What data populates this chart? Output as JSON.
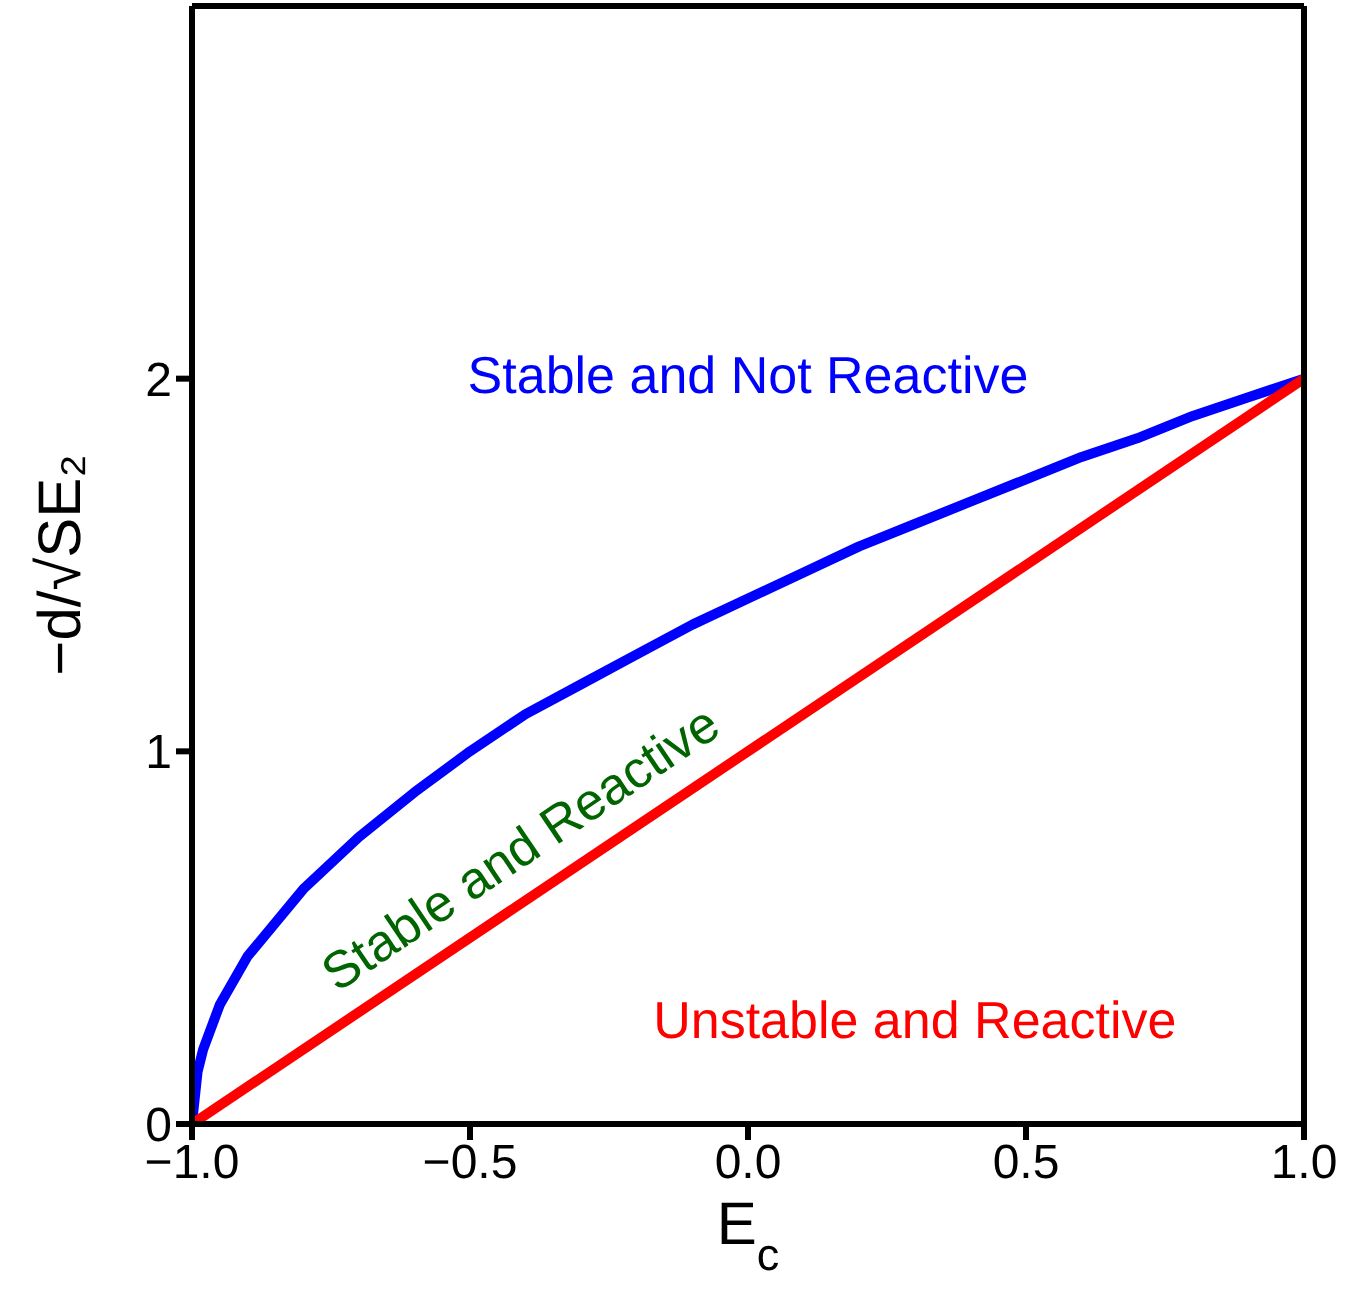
{
  "chart_data": {
    "type": "line",
    "xlabel": "E$_{c}$",
    "ylabel": "−d/√SE₂",
    "xlim": [
      -1,
      1
    ],
    "ylim": [
      0,
      3
    ],
    "xticks": [
      {
        "value": -1,
        "label": "−1.0"
      },
      {
        "value": -0.5,
        "label": "−0.5"
      },
      {
        "value": 0,
        "label": "0.0"
      },
      {
        "value": 0.5,
        "label": "0.5"
      },
      {
        "value": 1,
        "label": "1.0"
      }
    ],
    "yticks": [
      0,
      1,
      2
    ],
    "marker": "none",
    "line_style": "solid",
    "series": [
      {
        "color": "#0000ff",
        "x": [
          -1,
          -0.99,
          -0.98,
          -0.95,
          -0.9,
          -0.8,
          -0.7,
          -0.6,
          -0.5,
          -0.4,
          -0.3,
          -0.2,
          -0.1,
          0,
          0.1,
          0.2,
          0.3,
          0.4,
          0.5,
          0.6,
          0.7,
          0.8,
          0.9,
          1
        ],
        "values": [
          0,
          0.14,
          0.2,
          0.32,
          0.45,
          0.63,
          0.77,
          0.89,
          1.0,
          1.1,
          1.18,
          1.26,
          1.34,
          1.41,
          1.48,
          1.55,
          1.61,
          1.67,
          1.73,
          1.79,
          1.84,
          1.9,
          1.95,
          2
        ]
      },
      {
        "color": "#ff0000",
        "x": [
          -1,
          1
        ],
        "values": [
          0,
          2
        ]
      }
    ],
    "annotations": [
      "Stable and Not Reactive",
      "Stable and Reactive",
      "Unstable and Reactive"
    ]
  }
}
